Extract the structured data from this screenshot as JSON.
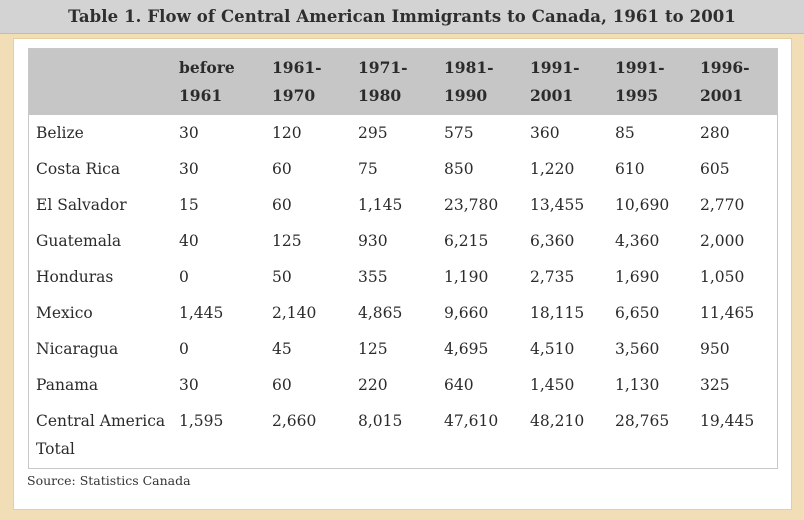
{
  "title": "Table 1. Flow of Central American Immigrants to Canada, 1961 to 2001",
  "columns": [
    "",
    "before\n1961",
    "1961-\n1970",
    "1971-\n1980",
    "1981-\n1990",
    "1991-\n2001",
    "1991-\n1995",
    "1996-\n2001"
  ],
  "rows": [
    [
      "Belize",
      "30",
      "120",
      "295",
      "575",
      "360",
      "85",
      "280"
    ],
    [
      "Costa Rica",
      "30",
      "60",
      "75",
      "850",
      "1,220",
      "610",
      "605"
    ],
    [
      "El Salvador",
      "15",
      "60",
      "1,145",
      "23,780",
      "13,455",
      "10,690",
      "2,770"
    ],
    [
      "Guatemala",
      "40",
      "125",
      "930",
      "6,215",
      "6,360",
      "4,360",
      "2,000"
    ],
    [
      "Honduras",
      "0",
      "50",
      "355",
      "1,190",
      "2,735",
      "1,690",
      "1,050"
    ],
    [
      "Mexico",
      "1,445",
      "2,140",
      "4,865",
      "9,660",
      "18,115",
      "6,650",
      "11,465"
    ],
    [
      "Nicaragua",
      "0",
      "45",
      "125",
      "4,695",
      "4,510",
      "3,560",
      "950"
    ],
    [
      "Panama",
      "30",
      "60",
      "220",
      "640",
      "1,450",
      "1,130",
      "325"
    ],
    [
      "Central America Total",
      "1,595",
      "2,660",
      "8,015",
      "47,610",
      "48,210",
      "28,765",
      "19,445"
    ]
  ],
  "source": "Source: Statistics Canada",
  "colors": {
    "title_bar": "#d3d3d3",
    "frame": "#f1ddb6",
    "header_row": "#c6c6c6",
    "text": "#2b2b2b"
  }
}
